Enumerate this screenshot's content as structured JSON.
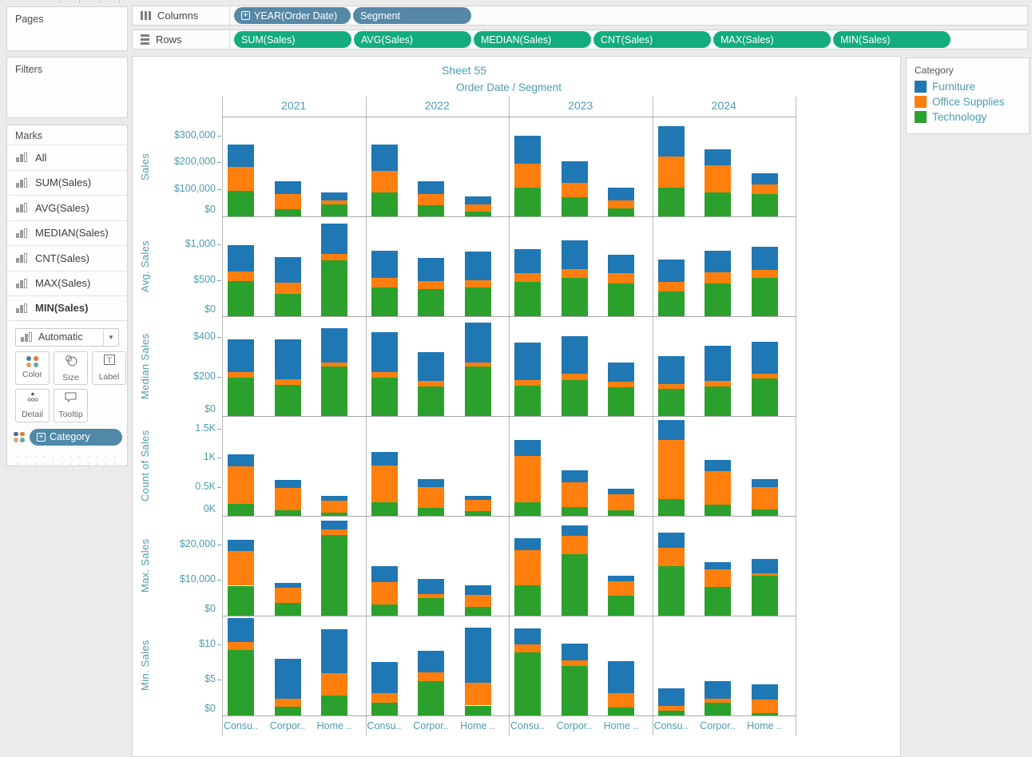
{
  "shelves": {
    "columns": {
      "label": "Columns",
      "pill_color": "#5688A7",
      "pills": [
        {
          "label": "YEAR(Order Date)",
          "has_expand": true
        },
        {
          "label": "Segment",
          "has_expand": false
        }
      ]
    },
    "rows": {
      "label": "Rows",
      "pill_color": "#12AC7D",
      "pills": [
        {
          "label": "SUM(Sales)"
        },
        {
          "label": "AVG(Sales)"
        },
        {
          "label": "MEDIAN(Sales)"
        },
        {
          "label": "CNT(Sales)"
        },
        {
          "label": "MAX(Sales)"
        },
        {
          "label": "MIN(Sales)"
        }
      ]
    }
  },
  "panels": {
    "pages": {
      "title": "Pages"
    },
    "filters": {
      "title": "Filters"
    },
    "marks": {
      "title": "Marks",
      "items": [
        "All",
        "SUM(Sales)",
        "AVG(Sales)",
        "MEDIAN(Sales)",
        "CNT(Sales)",
        "MAX(Sales)",
        "MIN(Sales)"
      ],
      "selected_item": "MIN(Sales)",
      "mark_type": "Automatic",
      "buttons": [
        "Color",
        "Size",
        "Label",
        "Detail",
        "Tooltip"
      ],
      "encoding_pill": "Category"
    }
  },
  "legend": {
    "title": "Category",
    "items": [
      {
        "label": "Furniture",
        "color": "#1F77B4"
      },
      {
        "label": "Office Supplies",
        "color": "#FF7F0E"
      },
      {
        "label": "Technology",
        "color": "#2CA02C"
      }
    ]
  },
  "chart_data": {
    "type": "bar",
    "stacked": true,
    "title": "Sheet 55",
    "column_header": "Order Date  /  Segment",
    "years": [
      "2021",
      "2022",
      "2023",
      "2024"
    ],
    "segments": [
      "Consumer",
      "Corporate",
      "Home Office"
    ],
    "segment_axis_labels": [
      "Consu..",
      "Corpor..",
      "Home .."
    ],
    "stack_order_bottom_to_top": [
      "Technology",
      "Office Supplies",
      "Furniture"
    ],
    "colors": {
      "Furniture": "#1F77B4",
      "Office Supplies": "#FF7F0E",
      "Technology": "#2CA02C"
    },
    "legend_position": "right",
    "grid": "row and column dividers only",
    "rows": [
      {
        "measure": "SUM(Sales)",
        "axis_title": "Sales",
        "axis_max": 370000,
        "ticks": [
          {
            "value": 0,
            "label": "$0"
          },
          {
            "value": 100000,
            "label": "$100,000"
          },
          {
            "value": 200000,
            "label": "$200,000"
          },
          {
            "value": 300000,
            "label": "$300,000"
          }
        ],
        "values": [
          [
            [
              95000,
              88000,
              84000
            ],
            [
              28000,
              56000,
              47000
            ],
            [
              43000,
              17000,
              29000
            ]
          ],
          [
            [
              90000,
              80000,
              95000
            ],
            [
              42000,
              41000,
              48000
            ],
            [
              18000,
              25000,
              32000
            ]
          ],
          [
            [
              108000,
              87000,
              103000
            ],
            [
              70000,
              54000,
              81000
            ],
            [
              30000,
              28000,
              50000
            ]
          ],
          [
            [
              108000,
              115000,
              111000
            ],
            [
              89000,
              99000,
              60000
            ],
            [
              83000,
              34000,
              44000
            ]
          ]
        ]
      },
      {
        "measure": "AVG(Sales)",
        "axis_title": "Avg. Sales",
        "axis_max": 1390,
        "ticks": [
          {
            "value": 0,
            "label": "$0"
          },
          {
            "value": 500,
            "label": "$500"
          },
          {
            "value": 1000,
            "label": "$1,000"
          }
        ],
        "values": [
          [
            [
              485,
              135,
              365
            ],
            [
              315,
              150,
              355
            ],
            [
              775,
              95,
              415
            ]
          ],
          [
            [
              405,
              125,
              385
            ],
            [
              380,
              105,
              330
            ],
            [
              395,
              110,
              400
            ]
          ],
          [
            [
              480,
              125,
              330
            ],
            [
              535,
              120,
              405
            ],
            [
              460,
              145,
              250
            ]
          ],
          [
            [
              345,
              130,
              310
            ],
            [
              460,
              155,
              300
            ],
            [
              535,
              110,
              320
            ]
          ]
        ]
      },
      {
        "measure": "MEDIAN(Sales)",
        "axis_title": "Median Sales",
        "axis_max": 507,
        "ticks": [
          {
            "value": 0,
            "label": "$0"
          },
          {
            "value": 200,
            "label": "$200"
          },
          {
            "value": 400,
            "label": "$400"
          }
        ],
        "values": [
          [
            [
              195,
              28,
              165
            ],
            [
              160,
              28,
              200
            ],
            [
              250,
              22,
              175
            ]
          ],
          [
            [
              195,
              28,
              203
            ],
            [
              149,
              29,
              148
            ],
            [
              250,
              22,
              204
            ]
          ],
          [
            [
              154,
              27,
              192
            ],
            [
              182,
              33,
              189
            ],
            [
              146,
              30,
              94
            ]
          ],
          [
            [
              138,
              23,
              142
            ],
            [
              149,
              29,
              180
            ],
            [
              192,
              24,
              162
            ]
          ]
        ]
      },
      {
        "measure": "CNT(Sales)",
        "axis_title": "Count of Sales",
        "axis_max": 1720,
        "ticks": [
          {
            "value": 0,
            "label": "0K"
          },
          {
            "value": 500,
            "label": "0.5K"
          },
          {
            "value": 1000,
            "label": "1K"
          },
          {
            "value": 1500,
            "label": "1.5K"
          }
        ],
        "values": [
          [
            [
              206,
              643,
              206
            ],
            [
              101,
              385,
              133
            ],
            [
              60,
              201,
              78
            ]
          ],
          [
            [
              229,
              633,
              243
            ],
            [
              133,
              367,
              138
            ],
            [
              78,
              193,
              78
            ]
          ],
          [
            [
              234,
              803,
              275
            ],
            [
              156,
              427,
              201
            ],
            [
              96,
              280,
              92
            ]
          ],
          [
            [
              294,
              1009,
              344
            ],
            [
              193,
              582,
              184
            ],
            [
              106,
              394,
              133
            ]
          ]
        ]
      },
      {
        "measure": "MAX(Sales)",
        "axis_title": "Max. Sales",
        "axis_max": 28000,
        "ticks": [
          {
            "value": 0,
            "label": "$0"
          },
          {
            "value": 10000,
            "label": "$10,000"
          },
          {
            "value": 20000,
            "label": "$20,000"
          }
        ],
        "values": [
          [
            [
              8400,
              9700,
              3100
            ],
            [
              3600,
              4200,
              1300
            ],
            [
              22700,
              1600,
              2400
            ]
          ],
          [
            [
              3100,
              6400,
              4400
            ],
            [
              5000,
              1100,
              4300
            ],
            [
              2400,
              3500,
              2600
            ]
          ],
          [
            [
              8500,
              9900,
              3400
            ],
            [
              17200,
              5200,
              3000
            ],
            [
              5700,
              4000,
              1500
            ]
          ],
          [
            [
              13900,
              5100,
              4400
            ],
            [
              8100,
              4900,
              2100
            ],
            [
              11200,
              700,
              4100
            ]
          ]
        ]
      },
      {
        "measure": "MIN(Sales)",
        "axis_title": "Min. Sales",
        "axis_max": 14,
        "ticks": [
          {
            "value": 0,
            "label": "$0"
          },
          {
            "value": 5,
            "label": "$5"
          },
          {
            "value": 10,
            "label": "$10"
          }
        ],
        "values": [
          [
            [
              9.2,
              1.1,
              3.4
            ],
            [
              1.2,
              1.1,
              5.6
            ],
            [
              2.8,
              3.1,
              6.2
            ]
          ],
          [
            [
              1.8,
              1.3,
              4.4
            ],
            [
              4.8,
              1.3,
              3.0
            ],
            [
              1.4,
              3.2,
              7.7
            ]
          ],
          [
            [
              8.8,
              1.2,
              2.2
            ],
            [
              7.0,
              0.7,
              2.4
            ],
            [
              1.1,
              2.0,
              4.5
            ]
          ],
          [
            [
              0.7,
              0.6,
              2.5
            ],
            [
              1.8,
              0.6,
              2.4
            ],
            [
              0.3,
              1.9,
              2.2
            ]
          ]
        ]
      }
    ]
  }
}
